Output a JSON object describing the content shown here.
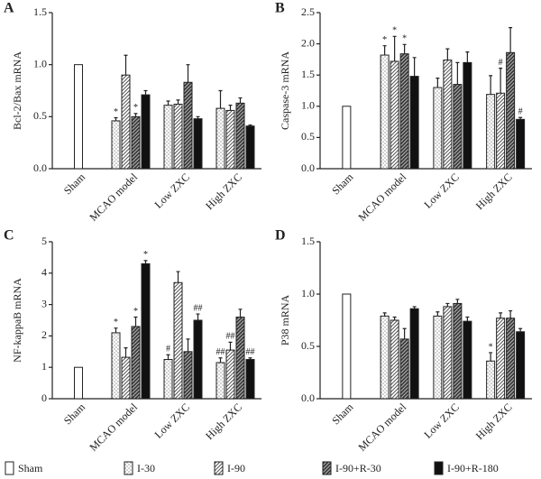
{
  "legend": {
    "series": [
      {
        "name": "Sham",
        "color": "#ffffff",
        "pattern": "solid"
      },
      {
        "name": "I-30",
        "color": "#9a9a9a",
        "pattern": "dots"
      },
      {
        "name": "I-90",
        "color": "#555555",
        "pattern": "hatch"
      },
      {
        "name": "I-90+R-30",
        "color": "#333333",
        "pattern": "dense-hatch"
      },
      {
        "name": "I-90+R-180",
        "color": "#111111",
        "pattern": "solid"
      }
    ]
  },
  "chart_data": [
    {
      "type": "bar",
      "panel": "A",
      "ylabel": "Bcl-2/Bax mRNA",
      "categories": [
        "Sham",
        "MCAO model",
        "Low ZXC",
        "High ZXC"
      ],
      "ylim": [
        0,
        1.5
      ],
      "yticks": [
        {
          "value": 0,
          "label": "0.0"
        },
        0.5,
        {
          "value": 1,
          "label": "1.0"
        },
        1.5
      ],
      "series": [
        {
          "values": [
            1.0,
            null,
            null,
            null
          ],
          "errors": [
            0,
            null,
            null,
            null
          ],
          "annotations": [
            null,
            null,
            null,
            null
          ]
        },
        {
          "values": [
            null,
            0.46,
            0.61,
            0.58
          ],
          "errors": [
            null,
            0.03,
            0.04,
            0.17
          ],
          "annotations": [
            null,
            "*",
            null,
            null
          ]
        },
        {
          "values": [
            null,
            0.9,
            0.62,
            0.56
          ],
          "errors": [
            null,
            0.19,
            0.04,
            0.05
          ],
          "annotations": [
            null,
            null,
            null,
            null
          ]
        },
        {
          "values": [
            null,
            0.5,
            0.83,
            0.63
          ],
          "errors": [
            null,
            0.03,
            0.17,
            0.05
          ],
          "annotations": [
            null,
            "*",
            null,
            null
          ]
        },
        {
          "values": [
            null,
            0.71,
            0.48,
            0.41
          ],
          "errors": [
            null,
            0.04,
            0.02,
            0.01
          ],
          "annotations": [
            null,
            null,
            null,
            null
          ]
        }
      ]
    },
    {
      "type": "bar",
      "panel": "B",
      "ylabel": "Caspase-3 mRNA",
      "categories": [
        "Sham",
        "MCAO model",
        "Low ZXC",
        "High ZXC"
      ],
      "ylim": [
        0,
        2.5
      ],
      "yticks": [
        {
          "value": 0,
          "label": "0.0"
        },
        0.5,
        {
          "value": 1,
          "label": "1.0"
        },
        1.5,
        {
          "value": 2,
          "label": "2.0"
        },
        2.5
      ],
      "series": [
        {
          "values": [
            1.0,
            null,
            null,
            null
          ],
          "errors": [
            0,
            null,
            null,
            null
          ],
          "annotations": [
            null,
            null,
            null,
            null
          ]
        },
        {
          "values": [
            null,
            1.82,
            1.3,
            1.19
          ],
          "errors": [
            null,
            0.15,
            0.15,
            0.3
          ],
          "annotations": [
            null,
            "*",
            null,
            null
          ]
        },
        {
          "values": [
            null,
            1.72,
            1.74,
            1.21
          ],
          "errors": [
            null,
            0.4,
            0.18,
            0.4
          ],
          "annotations": [
            null,
            "*",
            null,
            "#"
          ]
        },
        {
          "values": [
            null,
            1.84,
            1.35,
            1.86
          ],
          "errors": [
            null,
            0.15,
            0.35,
            0.4
          ],
          "annotations": [
            null,
            "*",
            null,
            null
          ]
        },
        {
          "values": [
            null,
            1.48,
            1.7,
            0.79
          ],
          "errors": [
            null,
            0.3,
            0.17,
            0.03
          ],
          "annotations": [
            null,
            null,
            null,
            "#"
          ]
        }
      ]
    },
    {
      "type": "bar",
      "panel": "C",
      "ylabel": "NF-kappaB mRNA",
      "categories": [
        "Sham",
        "MCAO model",
        "Low ZXC",
        "High ZXC"
      ],
      "ylim": [
        0,
        5
      ],
      "yticks": [
        0,
        1,
        2,
        3,
        4,
        5
      ],
      "series": [
        {
          "values": [
            1,
            null,
            null,
            null
          ],
          "errors": [
            0,
            null,
            null,
            null
          ],
          "annotations": [
            null,
            null,
            null,
            null
          ]
        },
        {
          "values": [
            null,
            2.1,
            1.25,
            1.15
          ],
          "errors": [
            null,
            0.15,
            0.15,
            0.15
          ],
          "annotations": [
            null,
            "*",
            "#",
            "##"
          ]
        },
        {
          "values": [
            null,
            1.32,
            3.7,
            1.55
          ],
          "errors": [
            null,
            0.3,
            0.35,
            0.25
          ],
          "annotations": [
            null,
            null,
            null,
            "##"
          ]
        },
        {
          "values": [
            null,
            2.3,
            1.5,
            2.6
          ],
          "errors": [
            null,
            0.3,
            0.4,
            0.25
          ],
          "annotations": [
            null,
            "*",
            null,
            null
          ]
        },
        {
          "values": [
            null,
            4.3,
            2.5,
            1.25
          ],
          "errors": [
            null,
            0.1,
            0.2,
            0.05
          ],
          "annotations": [
            null,
            "*",
            "##",
            "##"
          ]
        }
      ]
    },
    {
      "type": "bar",
      "panel": "D",
      "ylabel": "P38 mRNA",
      "categories": [
        "Sham",
        "MCAO model",
        "Low ZXC",
        "High ZXC"
      ],
      "ylim": [
        0,
        1.5
      ],
      "yticks": [
        {
          "value": 0,
          "label": "0.0"
        },
        0.5,
        {
          "value": 1,
          "label": "1.0"
        },
        1.5
      ],
      "series": [
        {
          "values": [
            1.0,
            null,
            null,
            null
          ],
          "errors": [
            0,
            null,
            null,
            null
          ],
          "annotations": [
            null,
            null,
            null,
            null
          ]
        },
        {
          "values": [
            null,
            0.79,
            0.79,
            0.36
          ],
          "errors": [
            null,
            0.03,
            0.04,
            0.08
          ],
          "annotations": [
            null,
            null,
            null,
            "*"
          ]
        },
        {
          "values": [
            null,
            0.75,
            0.88,
            0.77
          ],
          "errors": [
            null,
            0.03,
            0.03,
            0.05
          ],
          "annotations": [
            null,
            null,
            null,
            null
          ]
        },
        {
          "values": [
            null,
            0.57,
            0.91,
            0.77
          ],
          "errors": [
            null,
            0.1,
            0.04,
            0.07
          ],
          "annotations": [
            null,
            null,
            null,
            null
          ]
        },
        {
          "values": [
            null,
            0.86,
            0.74,
            0.64
          ],
          "errors": [
            null,
            0.02,
            0.04,
            0.03
          ],
          "annotations": [
            null,
            null,
            null,
            null
          ]
        }
      ]
    }
  ]
}
